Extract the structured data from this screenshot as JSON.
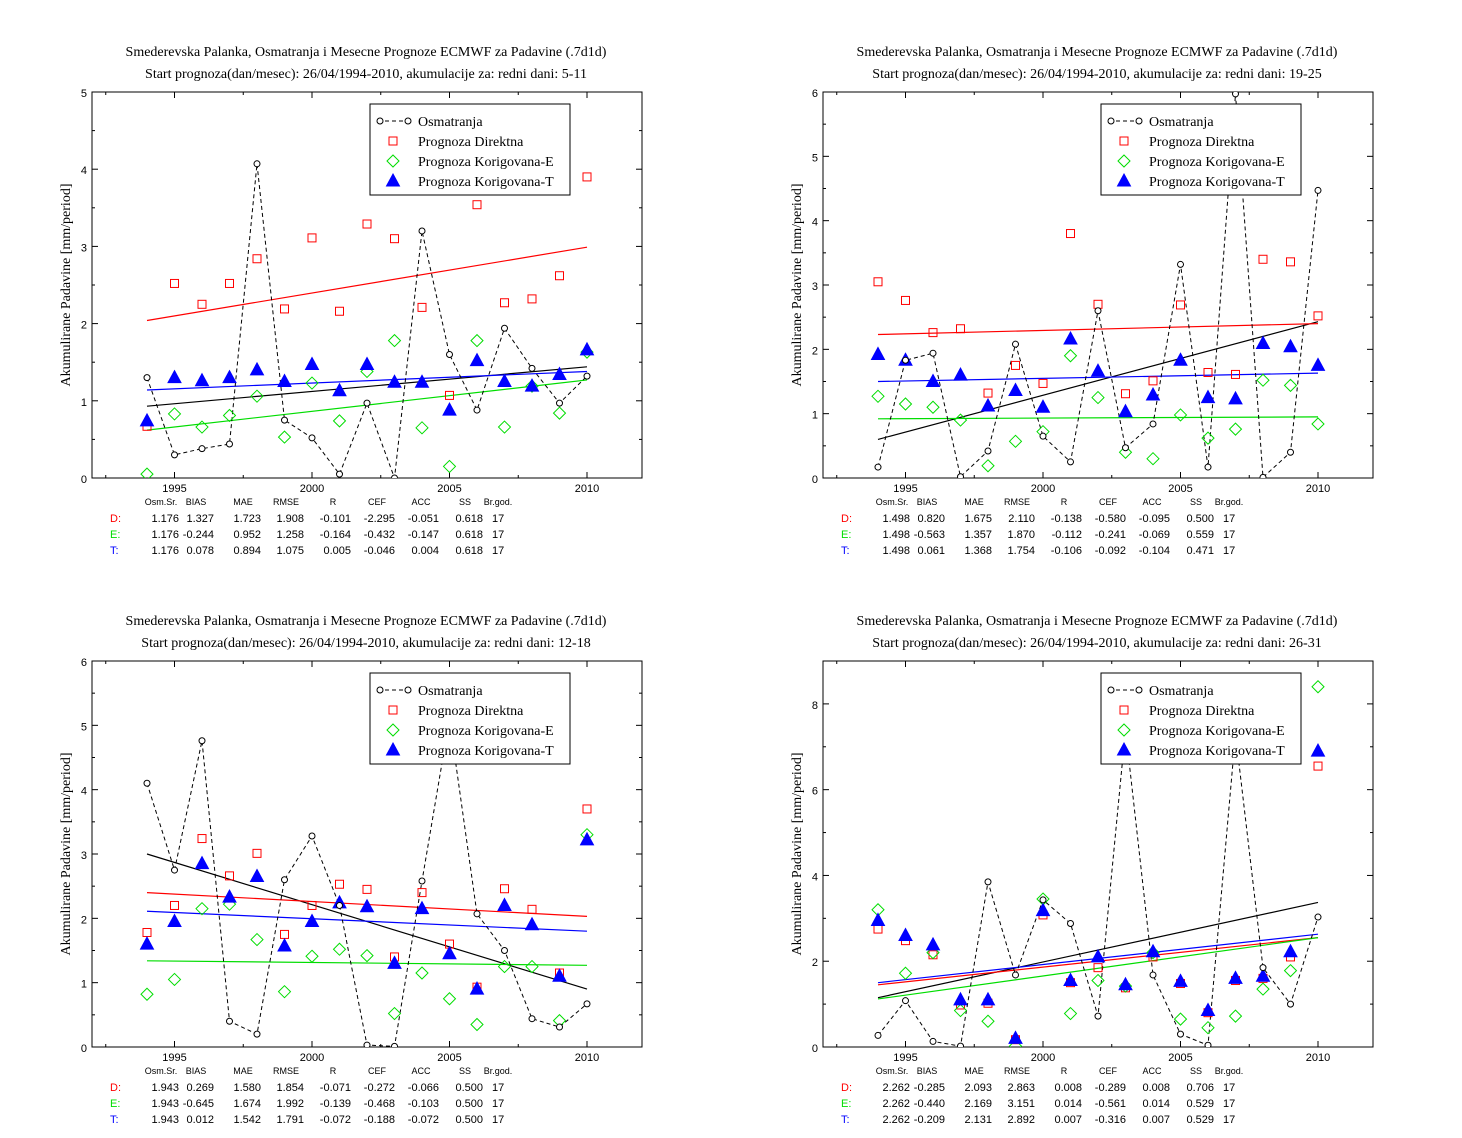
{
  "colors": {
    "obs": "#000000",
    "direct": "#ff0000",
    "corrE": "#00dd00",
    "corrT": "#0000ff"
  },
  "chart_data": [
    {
      "type": "scatter",
      "title": "Smederevska Palanka, Osmatranja i Mesecne Prognoze ECMWF za Padavine (.7d1d)",
      "subtitle": "Start prognoza(dan/mesec): 26/04/1994-2010, akumulacije za: redni dani: 5-11",
      "ylabel": "Akumulirane Padavine [mm/period]",
      "xlabel": "",
      "xlim": [
        1992,
        2012
      ],
      "ylim": [
        0,
        5
      ],
      "xticks": [
        1995,
        2000,
        2005,
        2010
      ],
      "yticks": [
        0,
        1,
        2,
        3,
        4,
        5
      ],
      "legend_position": "top-right",
      "x": [
        1994,
        1995,
        1996,
        1997,
        1998,
        1999,
        2000,
        2001,
        2002,
        2003,
        2004,
        2005,
        2006,
        2007,
        2008,
        2009,
        2010
      ],
      "series": [
        {
          "name": "Osmatranja",
          "marker": "circle-dashed-line",
          "values": [
            1.3,
            0.3,
            0.38,
            0.44,
            4.07,
            0.75,
            0.52,
            0.05,
            0.97,
            0.0,
            3.2,
            1.6,
            0.88,
            1.94,
            1.42,
            0.97,
            1.32
          ]
        },
        {
          "name": "Prognoza Direktna",
          "marker": "open-square",
          "values": [
            0.67,
            2.52,
            2.25,
            2.52,
            2.84,
            2.19,
            3.11,
            2.16,
            3.29,
            3.1,
            2.21,
            1.07,
            3.54,
            2.27,
            2.32,
            2.62,
            3.9
          ]
        },
        {
          "name": "Prognoza Korigovana-E",
          "marker": "open-diamond",
          "values": [
            0.05,
            0.83,
            0.66,
            0.81,
            1.06,
            0.53,
            1.23,
            0.74,
            1.38,
            1.78,
            0.65,
            0.15,
            1.78,
            0.66,
            1.19,
            0.84,
            1.63
          ]
        },
        {
          "name": "Prognoza Korigovana-T",
          "marker": "filled-triangle",
          "values": [
            0.74,
            1.3,
            1.26,
            1.3,
            1.4,
            1.25,
            1.47,
            1.13,
            1.47,
            1.24,
            1.24,
            0.88,
            1.52,
            1.25,
            1.19,
            1.34,
            1.66
          ]
        }
      ],
      "trend_lines": [
        {
          "series": "Osmatranja",
          "from": [
            1994,
            0.93
          ],
          "to": [
            2010,
            1.44
          ]
        },
        {
          "series": "Prognoza Direktna",
          "from": [
            1994,
            2.04
          ],
          "to": [
            2010,
            2.99
          ]
        },
        {
          "series": "Prognoza Korigovana-E",
          "from": [
            1994,
            0.62
          ],
          "to": [
            2010,
            1.27
          ]
        },
        {
          "series": "Prognoza Korigovana-T",
          "from": [
            1994,
            1.14
          ],
          "to": [
            2010,
            1.38
          ]
        }
      ],
      "stats": {
        "headers": [
          "Osm.Sr.",
          "BIAS",
          "MAE",
          "RMSE",
          "R",
          "CEF",
          "ACC",
          "SS",
          "Br.god."
        ],
        "rows": [
          {
            "label": "D:",
            "values": [
              "1.176",
              "1.327",
              "1.723",
              "1.908",
              "-0.101",
              "-2.295",
              "-0.051",
              "0.618",
              "17"
            ]
          },
          {
            "label": "E:",
            "values": [
              "1.176",
              "-0.244",
              "0.952",
              "1.258",
              "-0.164",
              "-0.432",
              "-0.147",
              "0.618",
              "17"
            ]
          },
          {
            "label": "T:",
            "values": [
              "1.176",
              "0.078",
              "0.894",
              "1.075",
              "0.005",
              "-0.046",
              "0.004",
              "0.618",
              "17"
            ]
          }
        ]
      }
    },
    {
      "type": "scatter",
      "title": "Smederevska Palanka, Osmatranja i Mesecne Prognoze ECMWF za Padavine (.7d1d)",
      "subtitle": "Start prognoza(dan/mesec): 26/04/1994-2010, akumulacije za: redni dani: 19-25",
      "ylabel": "Akumulirane Padavine [mm/period]",
      "xlabel": "",
      "xlim": [
        1992,
        2012
      ],
      "ylim": [
        0,
        6
      ],
      "xticks": [
        1995,
        2000,
        2005,
        2010
      ],
      "yticks": [
        0,
        1,
        2,
        3,
        4,
        5,
        6
      ],
      "legend_position": "top-right",
      "x": [
        1994,
        1995,
        1996,
        1997,
        1998,
        1999,
        2000,
        2001,
        2002,
        2003,
        2004,
        2005,
        2006,
        2007,
        2008,
        2009,
        2010
      ],
      "series": [
        {
          "name": "Osmatranja",
          "marker": "circle-dashed-line",
          "values": [
            0.17,
            1.83,
            1.94,
            0.02,
            0.42,
            2.08,
            0.65,
            0.25,
            2.6,
            0.47,
            0.84,
            3.32,
            0.17,
            5.97,
            0.01,
            0.4,
            4.47
          ]
        },
        {
          "name": "Prognoza Direktna",
          "marker": "open-square",
          "values": [
            3.05,
            2.76,
            2.26,
            2.32,
            1.32,
            1.75,
            1.47,
            3.8,
            2.7,
            1.31,
            1.51,
            2.69,
            1.64,
            1.61,
            3.4,
            3.36,
            2.52
          ]
        },
        {
          "name": "Prognoza Korigovana-E",
          "marker": "open-diamond",
          "values": [
            1.27,
            1.15,
            1.1,
            0.9,
            0.19,
            0.57,
            0.72,
            1.9,
            1.25,
            0.4,
            0.3,
            0.98,
            0.62,
            0.76,
            1.52,
            1.44,
            0.84
          ]
        },
        {
          "name": "Prognoza Korigovana-T",
          "marker": "filled-triangle",
          "values": [
            1.92,
            1.83,
            1.5,
            1.6,
            1.12,
            1.36,
            1.1,
            2.16,
            1.66,
            1.03,
            1.29,
            1.83,
            1.25,
            1.23,
            2.09,
            2.04,
            1.75
          ]
        }
      ],
      "trend_lines": [
        {
          "series": "Osmatranja",
          "from": [
            1994,
            0.6
          ],
          "to": [
            2010,
            2.43
          ]
        },
        {
          "series": "Prognoza Direktna",
          "from": [
            1994,
            2.23
          ],
          "to": [
            2010,
            2.4
          ]
        },
        {
          "series": "Prognoza Korigovana-E",
          "from": [
            1994,
            0.92
          ],
          "to": [
            2010,
            0.95
          ]
        },
        {
          "series": "Prognoza Korigovana-T",
          "from": [
            1994,
            1.5
          ],
          "to": [
            2010,
            1.63
          ]
        }
      ],
      "stats": {
        "headers": [
          "Osm.Sr.",
          "BIAS",
          "MAE",
          "RMSE",
          "R",
          "CEF",
          "ACC",
          "SS",
          "Br.god."
        ],
        "rows": [
          {
            "label": "D:",
            "values": [
              "1.498",
              "0.820",
              "1.675",
              "2.110",
              "-0.138",
              "-0.580",
              "-0.095",
              "0.500",
              "17"
            ]
          },
          {
            "label": "E:",
            "values": [
              "1.498",
              "-0.563",
              "1.357",
              "1.870",
              "-0.112",
              "-0.241",
              "-0.069",
              "0.559",
              "17"
            ]
          },
          {
            "label": "T:",
            "values": [
              "1.498",
              "0.061",
              "1.368",
              "1.754",
              "-0.106",
              "-0.092",
              "-0.104",
              "0.471",
              "17"
            ]
          }
        ]
      }
    },
    {
      "type": "scatter",
      "title": "Smederevska Palanka, Osmatranja i Mesecne Prognoze ECMWF za Padavine (.7d1d)",
      "subtitle": "Start prognoza(dan/mesec): 26/04/1994-2010, akumulacije za: redni dani: 12-18",
      "ylabel": "Akumulirane Padavine [mm/period]",
      "xlabel": "",
      "xlim": [
        1992,
        2012
      ],
      "ylim": [
        0,
        6
      ],
      "xticks": [
        1995,
        2000,
        2005,
        2010
      ],
      "yticks": [
        0,
        1,
        2,
        3,
        4,
        5,
        6
      ],
      "legend_position": "top-right",
      "x": [
        1994,
        1995,
        1996,
        1997,
        1998,
        1999,
        2000,
        2001,
        2002,
        2003,
        2004,
        2005,
        2006,
        2007,
        2008,
        2009,
        2010
      ],
      "series": [
        {
          "name": "Osmatranja",
          "marker": "circle-dashed-line",
          "values": [
            4.1,
            2.75,
            4.76,
            0.4,
            0.2,
            2.6,
            3.28,
            2.2,
            0.03,
            0.01,
            2.58,
            5.1,
            2.07,
            1.5,
            0.44,
            0.31,
            0.67
          ]
        },
        {
          "name": "Prognoza Direktna",
          "marker": "open-square",
          "values": [
            1.78,
            2.2,
            3.24,
            2.66,
            3.01,
            1.75,
            2.2,
            2.53,
            2.45,
            1.4,
            2.4,
            1.6,
            0.93,
            2.46,
            2.14,
            1.15,
            3.7
          ]
        },
        {
          "name": "Prognoza Korigovana-E",
          "marker": "open-diamond",
          "values": [
            0.82,
            1.05,
            2.15,
            2.22,
            1.67,
            0.86,
            1.41,
            1.52,
            1.42,
            0.52,
            1.15,
            0.75,
            0.35,
            1.25,
            1.25,
            0.41,
            3.3
          ]
        },
        {
          "name": "Prognoza Korigovana-T",
          "marker": "filled-triangle",
          "values": [
            1.6,
            1.95,
            2.85,
            2.33,
            2.65,
            1.57,
            1.95,
            2.24,
            2.18,
            1.3,
            2.15,
            1.45,
            0.9,
            2.2,
            1.9,
            1.1,
            3.22
          ]
        }
      ],
      "trend_lines": [
        {
          "series": "Osmatranja",
          "from": [
            1994,
            3.0
          ],
          "to": [
            2010,
            0.9
          ]
        },
        {
          "series": "Prognoza Direktna",
          "from": [
            1994,
            2.4
          ],
          "to": [
            2010,
            2.03
          ]
        },
        {
          "series": "Prognoza Korigovana-E",
          "from": [
            1994,
            1.34
          ],
          "to": [
            2010,
            1.27
          ]
        },
        {
          "series": "Prognoza Korigovana-T",
          "from": [
            1994,
            2.11
          ],
          "to": [
            2010,
            1.8
          ]
        }
      ],
      "stats": {
        "headers": [
          "Osm.Sr.",
          "BIAS",
          "MAE",
          "RMSE",
          "R",
          "CEF",
          "ACC",
          "SS",
          "Br.god."
        ],
        "rows": [
          {
            "label": "D:",
            "values": [
              "1.943",
              "0.269",
              "1.580",
              "1.854",
              "-0.071",
              "-0.272",
              "-0.066",
              "0.500",
              "17"
            ]
          },
          {
            "label": "E:",
            "values": [
              "1.943",
              "-0.645",
              "1.674",
              "1.992",
              "-0.139",
              "-0.468",
              "-0.103",
              "0.500",
              "17"
            ]
          },
          {
            "label": "T:",
            "values": [
              "1.943",
              "0.012",
              "1.542",
              "1.791",
              "-0.072",
              "-0.188",
              "-0.072",
              "0.500",
              "17"
            ]
          }
        ]
      }
    },
    {
      "type": "scatter",
      "title": "Smederevska Palanka, Osmatranja i Mesecne Prognoze ECMWF za Padavine (.7d1d)",
      "subtitle": "Start prognoza(dan/mesec): 26/04/1994-2010, akumulacije za: redni dani: 26-31",
      "ylabel": "Akumulirane Padavine [mm/period]",
      "xlabel": "",
      "xlim": [
        1992,
        2012
      ],
      "ylim": [
        0,
        9
      ],
      "xticks": [
        1995,
        2000,
        2005,
        2010
      ],
      "yticks": [
        0,
        2,
        4,
        6,
        8
      ],
      "legend_position": "top-right",
      "x": [
        1994,
        1995,
        1996,
        1997,
        1998,
        1999,
        2000,
        2001,
        2002,
        2003,
        2004,
        2005,
        2006,
        2007,
        2008,
        2009,
        2010
      ],
      "series": [
        {
          "name": "Osmatranja",
          "marker": "circle-dashed-line",
          "values": [
            0.27,
            1.08,
            0.13,
            0.02,
            3.85,
            1.68,
            3.43,
            2.88,
            0.72,
            7.4,
            1.68,
            0.3,
            0.04,
            7.3,
            1.85,
            1.0,
            3.03
          ]
        },
        {
          "name": "Prognoza Direktna",
          "marker": "open-square",
          "values": [
            2.75,
            2.48,
            2.15,
            0.98,
            1.02,
            0.17,
            3.08,
            1.5,
            1.85,
            1.38,
            2.1,
            1.48,
            0.8,
            1.55,
            1.6,
            2.1,
            6.55
          ]
        },
        {
          "name": "Prognoza Korigovana-E",
          "marker": "open-diamond",
          "values": [
            3.2,
            1.72,
            2.2,
            0.85,
            0.6,
            0.02,
            3.45,
            0.78,
            1.55,
            1.42,
            2.2,
            0.65,
            0.45,
            0.72,
            1.35,
            1.78,
            8.4
          ]
        },
        {
          "name": "Prognoza Korigovana-T",
          "marker": "filled-triangle",
          "values": [
            2.95,
            2.6,
            2.38,
            1.1,
            1.1,
            0.2,
            3.18,
            1.55,
            2.1,
            1.45,
            2.22,
            1.53,
            0.85,
            1.6,
            1.65,
            2.22,
            6.9
          ]
        }
      ],
      "trend_lines": [
        {
          "series": "Osmatranja",
          "from": [
            1994,
            1.15
          ],
          "to": [
            2010,
            3.37
          ]
        },
        {
          "series": "Prognoza Direktna",
          "from": [
            1994,
            1.45
          ],
          "to": [
            2010,
            2.55
          ]
        },
        {
          "series": "Prognoza Korigovana-E",
          "from": [
            1994,
            1.12
          ],
          "to": [
            2010,
            2.55
          ]
        },
        {
          "series": "Prognoza Korigovana-T",
          "from": [
            1994,
            1.5
          ],
          "to": [
            2010,
            2.63
          ]
        }
      ],
      "stats": {
        "headers": [
          "Osm.Sr.",
          "BIAS",
          "MAE",
          "RMSE",
          "R",
          "CEF",
          "ACC",
          "SS",
          "Br.god."
        ],
        "rows": [
          {
            "label": "D:",
            "values": [
              "2.262",
              "-0.285",
              "2.093",
              "2.863",
              "0.008",
              "-0.289",
              "0.008",
              "0.706",
              "17"
            ]
          },
          {
            "label": "E:",
            "values": [
              "2.262",
              "-0.440",
              "2.169",
              "3.151",
              "0.014",
              "-0.561",
              "0.014",
              "0.529",
              "17"
            ]
          },
          {
            "label": "T:",
            "values": [
              "2.262",
              "-0.209",
              "2.131",
              "2.892",
              "0.007",
              "-0.316",
              "0.007",
              "0.529",
              "17"
            ]
          }
        ]
      }
    }
  ]
}
